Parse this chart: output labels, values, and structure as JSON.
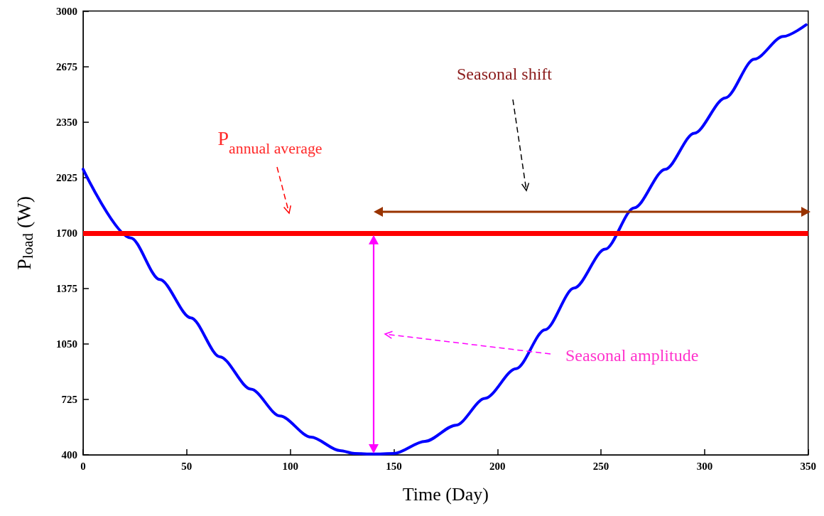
{
  "chart_data": {
    "type": "line",
    "xlabel": "Time (Day)",
    "ylabel": "P$_{load}$ (W)",
    "x": [
      0,
      23,
      37,
      52,
      66,
      81,
      95,
      110,
      124,
      131,
      140,
      150,
      165,
      180,
      194,
      209,
      223,
      237,
      252,
      266,
      281,
      295,
      310,
      324,
      338,
      349
    ],
    "series": [
      {
        "color": "#0000ff",
        "values": [
          2073,
          1671,
          1427,
          1203,
          975,
          785,
          628,
          504,
          425,
          408,
          405,
          408,
          479,
          574,
          731,
          905,
          1133,
          1377,
          1605,
          1847,
          2073,
          2284,
          2491,
          2718,
          2851,
          2919
        ]
      }
    ],
    "xlim": [
      0,
      350
    ],
    "xticks": [
      0,
      50,
      100,
      150,
      200,
      250,
      300,
      350
    ],
    "ylim": [
      400,
      3000
    ],
    "yticks": [
      400,
      725,
      1050,
      1375,
      1700,
      2025,
      2350,
      2675,
      3000
    ],
    "ref_lines": [
      {
        "axis": "y",
        "value": 1700,
        "color": "#ff0000"
      }
    ],
    "annotations": [
      "P$_{annual average}$",
      "Seasonal shift",
      "Seasonal amplitude"
    ],
    "grid": false
  }
}
